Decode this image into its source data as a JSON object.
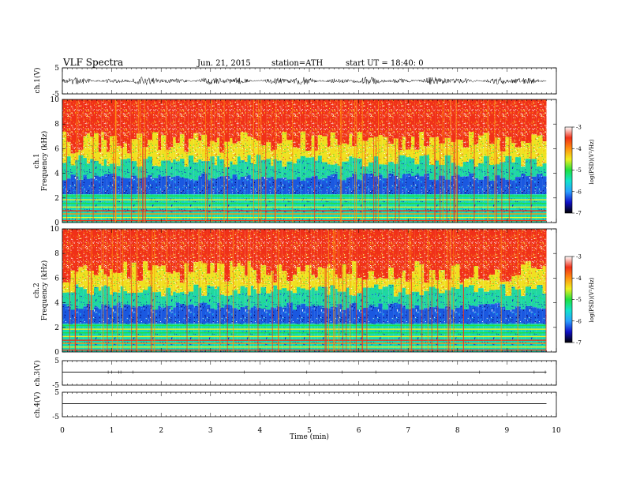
{
  "header": {
    "title": "VLF  Spectra",
    "date": "Jun. 21, 2015",
    "station": "station=ATH",
    "start": "start  UT =   18:40: 0"
  },
  "colors": {
    "background": "#ffffff",
    "axes": "#000000",
    "trace": "#000000"
  },
  "chart_data": {
    "type": "heatmap",
    "xlabel": "Time  (min)",
    "xlim": [
      0,
      10
    ],
    "x_ticks": [
      "0",
      "1",
      "2",
      "3",
      "4",
      "5",
      "6",
      "7",
      "8",
      "9",
      "10"
    ],
    "data_end_min": 9.8,
    "colormap": [
      "#000000",
      "#1010c8",
      "#2aa0ff",
      "#12e4cc",
      "#20e040",
      "#f0f020",
      "#ff9010",
      "#f03018",
      "#ffffff"
    ],
    "panels": [
      {
        "id": "ch1-wave",
        "type": "line",
        "ylabel": "ch.1(V)",
        "ylim": [
          -5,
          5
        ],
        "y_ticks": [
          "5",
          "-5"
        ],
        "trace_amplitude": 1.6
      },
      {
        "id": "ch1-spec",
        "type": "heatmap",
        "ylabel": "ch.1",
        "ylabel2": "Frequency  (kHz)",
        "ylim": [
          0,
          10
        ],
        "y_ticks": [
          "0",
          "2",
          "4",
          "6",
          "8",
          "10"
        ],
        "colorbar": {
          "label": "log(PSD)(V²/Hz)",
          "range": [
            -7,
            -3
          ],
          "ticks": [
            "-3",
            "-4",
            "-5",
            "-6",
            "-7"
          ]
        }
      },
      {
        "id": "ch2-spec",
        "type": "heatmap",
        "ylabel": "ch.2",
        "ylabel2": "Frequency  (kHz)",
        "ylim": [
          0,
          10
        ],
        "y_ticks": [
          "0",
          "2",
          "4",
          "6",
          "8",
          "10"
        ],
        "colorbar": {
          "label": "log(PSD)(V²/Hz)",
          "range": [
            -7,
            -3
          ],
          "ticks": [
            "-3",
            "-4",
            "-5",
            "-6",
            "-7"
          ]
        }
      },
      {
        "id": "ch3-wave",
        "type": "line",
        "ylabel": "ch.3(V)",
        "ylim": [
          -5,
          5
        ],
        "y_ticks": [
          "5",
          "-5"
        ],
        "trace_amplitude": 0.1
      },
      {
        "id": "ch4-wave",
        "type": "line",
        "ylabel": "ch.4(V)",
        "ylim": [
          -5,
          5
        ],
        "y_ticks": [
          "5",
          "-5"
        ],
        "trace_amplitude": 0.0
      }
    ]
  }
}
